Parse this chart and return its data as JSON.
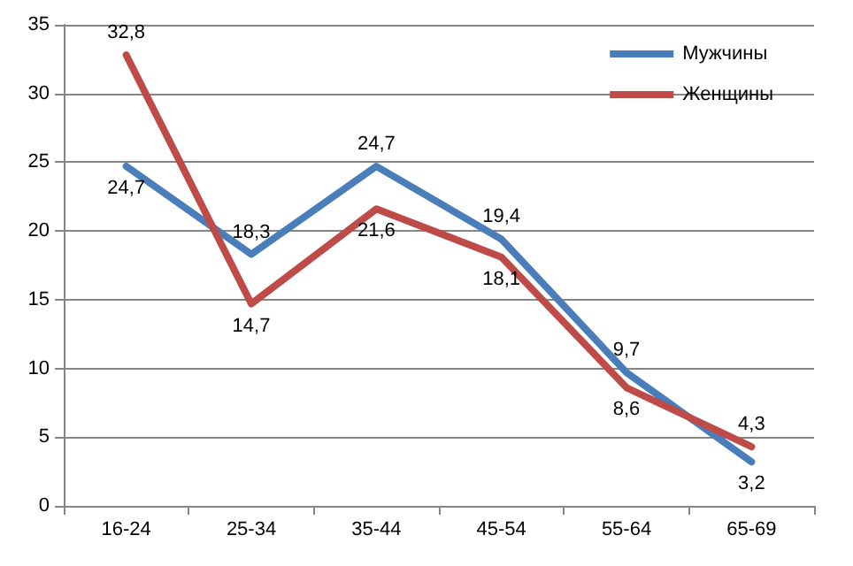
{
  "chart_data": {
    "type": "line",
    "categories": [
      "16-24",
      "25-34",
      "35-44",
      "45-54",
      "55-64",
      "65-69"
    ],
    "series": [
      {
        "name": "Мужчины",
        "color": "#4a7ebb",
        "values": [
          24.7,
          18.3,
          24.7,
          19.4,
          9.7,
          3.2
        ],
        "value_labels": [
          "24,7",
          "18,3",
          "24,7",
          "19,4",
          "9,7",
          "3,2"
        ]
      },
      {
        "name": "Женщины",
        "color": "#be4b48",
        "values": [
          32.8,
          14.7,
          21.6,
          18.1,
          8.6,
          4.3
        ],
        "value_labels": [
          "32,8",
          "14,7",
          "21,6",
          "18,1",
          "8,6",
          "4,3"
        ]
      }
    ],
    "ylim": [
      0,
      35
    ],
    "yticks": [
      0,
      5,
      10,
      15,
      20,
      25,
      30,
      35
    ],
    "grid": "y",
    "legend": "top right",
    "marker": "none",
    "line_style": "solid"
  }
}
